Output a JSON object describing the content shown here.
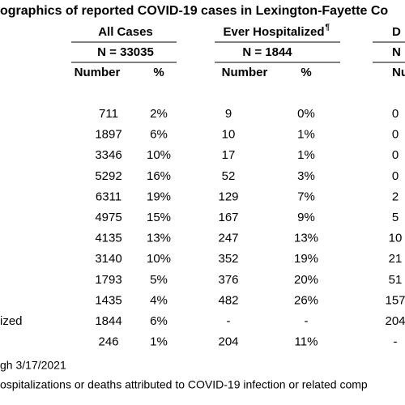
{
  "title": "ographics of reported COVID-19 cases in Lexington-Fayette Co",
  "groups": [
    {
      "label": "All Cases",
      "n": "N = 33035"
    },
    {
      "label": "Ever Hospitalized",
      "mark": "¶",
      "n": "N = 1844"
    },
    {
      "label": "D",
      "n": "N"
    }
  ],
  "subheaders": [
    "Number",
    "%",
    "Number",
    "%",
    "Numb"
  ],
  "rows": [
    {
      "cells": [
        "711",
        "2%",
        "9",
        "0%",
        "0"
      ]
    },
    {
      "cells": [
        "1897",
        "6%",
        "10",
        "1%",
        "0"
      ]
    },
    {
      "cells": [
        "3346",
        "10%",
        "17",
        "1%",
        "0"
      ]
    },
    {
      "cells": [
        "5292",
        "16%",
        "52",
        "3%",
        "0"
      ]
    },
    {
      "cells": [
        "6311",
        "19%",
        "129",
        "7%",
        "2"
      ]
    },
    {
      "cells": [
        "4975",
        "15%",
        "167",
        "9%",
        "5"
      ]
    },
    {
      "cells": [
        "4135",
        "13%",
        "247",
        "13%",
        "10"
      ]
    },
    {
      "cells": [
        "3140",
        "10%",
        "352",
        "19%",
        "21"
      ]
    },
    {
      "cells": [
        "1793",
        "5%",
        "376",
        "20%",
        "51"
      ]
    },
    {
      "cells": [
        "1435",
        "4%",
        "482",
        "26%",
        "157"
      ]
    },
    {
      "label": "ized",
      "cells": [
        "1844",
        "6%",
        "-",
        "-",
        "204"
      ]
    },
    {
      "cells": [
        "246",
        "1%",
        "204",
        "11%",
        "-"
      ]
    }
  ],
  "footnotes": [
    "gh 3/17/2021",
    "ospitalizations or deaths attributed to COVID-19 infection or related comp"
  ]
}
